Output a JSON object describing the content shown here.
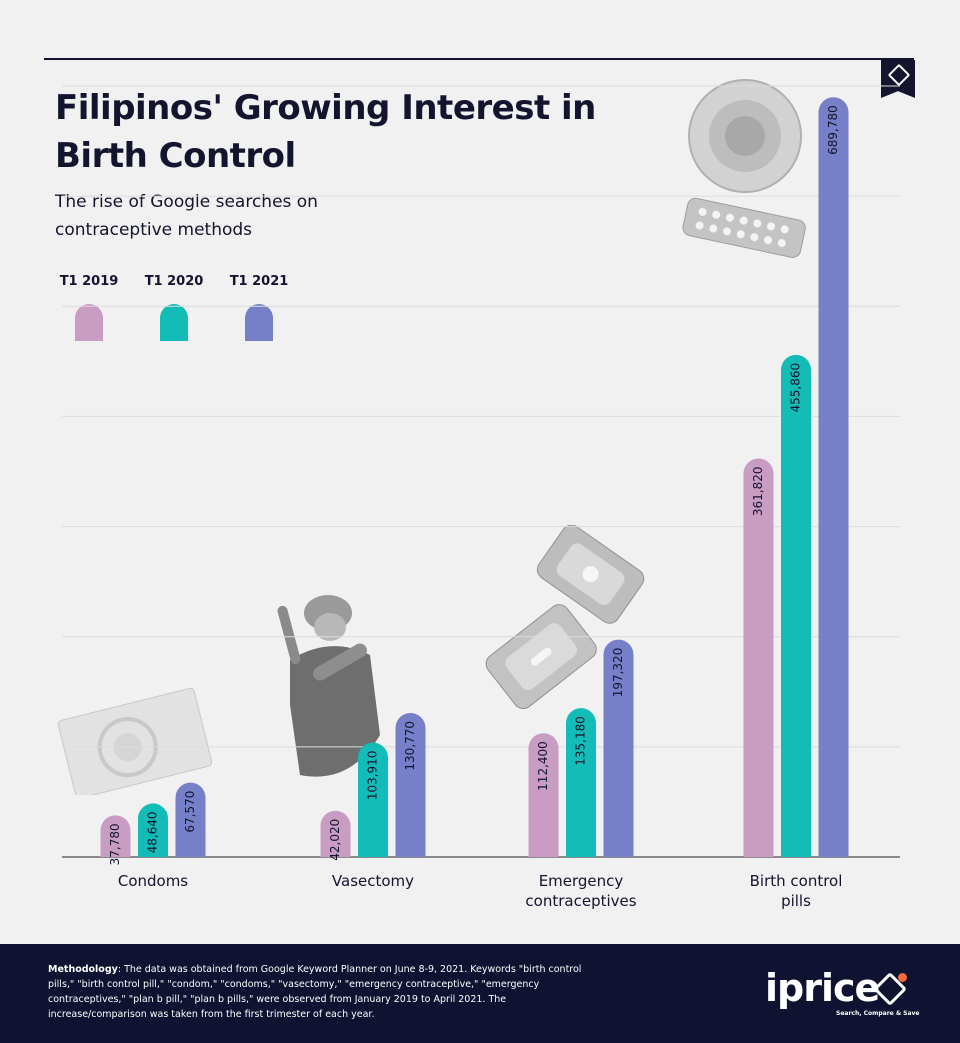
{
  "title": "Filipinos' Growing Interest in Birth Control",
  "subtitle": "The rise of Google searches on contraceptive methods",
  "legend": [
    {
      "label": "T1 2019",
      "color": "#c99cc4"
    },
    {
      "label": "T1 2020",
      "color": "#14bcb7"
    },
    {
      "label": "T1 2021",
      "color": "#7580c8"
    }
  ],
  "chart_data": {
    "type": "bar",
    "categories": [
      "Condoms",
      "Vasectomy",
      "Emergency contraceptives",
      "Birth control pills"
    ],
    "category_lines": [
      [
        "Condoms"
      ],
      [
        "Vasectomy"
      ],
      [
        "Emergency",
        "contraceptives"
      ],
      [
        "Birth control",
        "pills"
      ]
    ],
    "series": [
      {
        "name": "T1 2019",
        "color": "#c99cc4",
        "values": [
          37780,
          42020,
          112400,
          361820
        ],
        "labels": [
          "37,780",
          "42,020",
          "112,400",
          "361,820"
        ]
      },
      {
        "name": "T1 2020",
        "color": "#14bcb7",
        "values": [
          48640,
          103910,
          135180,
          455860
        ],
        "labels": [
          "48,640",
          "103,910",
          "135,180",
          "455,860"
        ]
      },
      {
        "name": "T1 2021",
        "color": "#7580c8",
        "values": [
          67570,
          130770,
          197320,
          689780
        ],
        "labels": [
          "67,570",
          "130,770",
          "197,320",
          "689,780"
        ]
      }
    ],
    "ylim": [
      0,
      700000
    ],
    "grid": true
  },
  "footer": {
    "methodology_label": "Methodology",
    "methodology_text": ": The data was obtained from Google Keyword Planner on June 8-9, 2021. Keywords \"birth control pills,\" \"birth control pill,\" \"condom,\" \"condoms,\" \"vasectomy,\" \"emergency contraceptive,\" \"emergency contraceptives,\" \"plan b pill,\" \"plan b pills,\" were observed from January 2019 to April 2021. The increase/comparison was taken from the first trimester of each year.",
    "brand": "iprice",
    "tagline": "Search, Compare & Save"
  }
}
